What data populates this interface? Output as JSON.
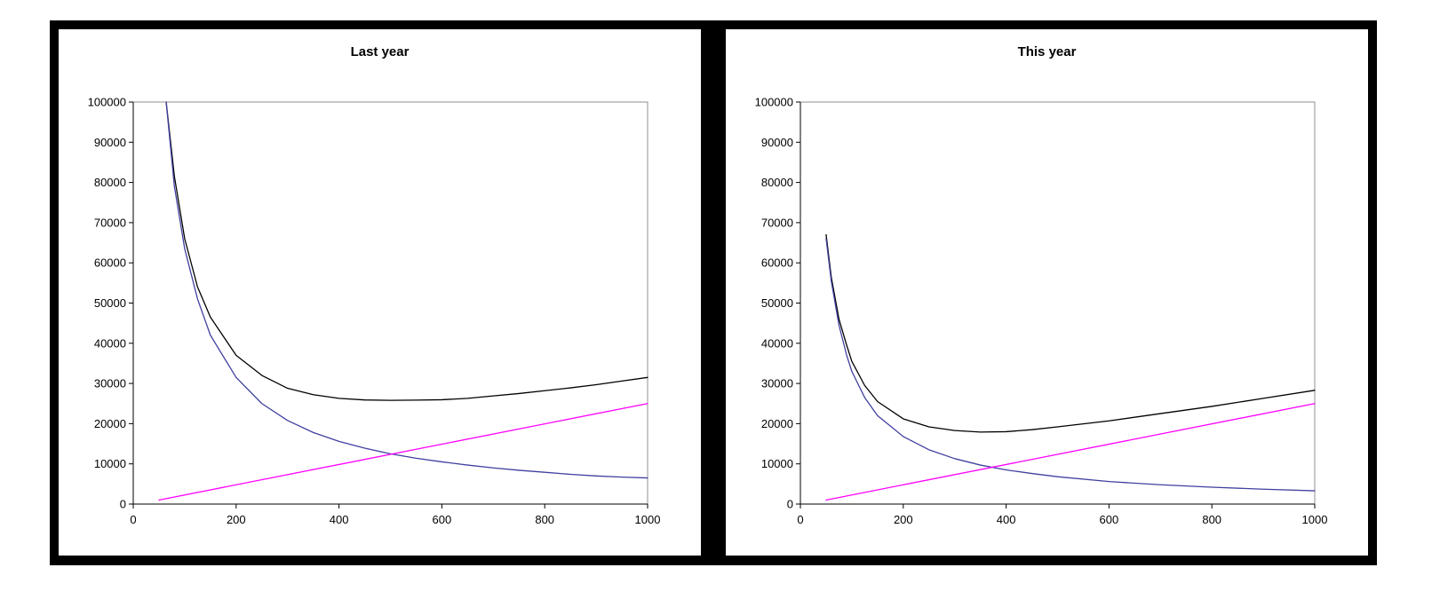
{
  "chart_data": [
    {
      "type": "line",
      "title": "Last year",
      "xlabel": "",
      "ylabel": "",
      "xlim": [
        0,
        1000
      ],
      "ylim": [
        0,
        100000
      ],
      "x_ticks": [
        0,
        200,
        400,
        600,
        800,
        1000
      ],
      "y_ticks": [
        0,
        10000,
        20000,
        30000,
        40000,
        50000,
        60000,
        70000,
        80000,
        90000,
        100000
      ],
      "grid": false,
      "legend": "none",
      "series": [
        {
          "color": "#000000",
          "x": [
            64,
            80,
            100,
            125,
            150,
            200,
            250,
            300,
            350,
            400,
            450,
            500,
            550,
            600,
            650,
            700,
            750,
            800,
            850,
            900,
            950,
            1000
          ],
          "values": [
            100000,
            81500,
            66000,
            54000,
            46500,
            37000,
            32000,
            28800,
            27200,
            26300,
            25900,
            25800,
            25850,
            25950,
            26300,
            26900,
            27500,
            28200,
            28900,
            29700,
            30600,
            31500
          ]
        },
        {
          "color": "#4040a0",
          "x": [
            64,
            80,
            100,
            125,
            150,
            200,
            250,
            300,
            350,
            400,
            450,
            500,
            550,
            600,
            650,
            700,
            750,
            800,
            850,
            900,
            950,
            1000
          ],
          "values": [
            100000,
            79000,
            63500,
            51000,
            42000,
            31500,
            25000,
            20800,
            17800,
            15600,
            13900,
            12500,
            11400,
            10500,
            9700,
            9000,
            8400,
            7900,
            7400,
            7000,
            6700,
            6500
          ]
        },
        {
          "color": "#ff00ff",
          "x": [
            50,
            1000
          ],
          "values": [
            1000,
            25000
          ]
        }
      ]
    },
    {
      "type": "line",
      "title": "This year",
      "xlabel": "",
      "ylabel": "",
      "xlim": [
        0,
        1000
      ],
      "ylim": [
        0,
        100000
      ],
      "x_ticks": [
        0,
        200,
        400,
        600,
        800,
        1000
      ],
      "y_ticks": [
        0,
        10000,
        20000,
        30000,
        40000,
        50000,
        60000,
        70000,
        80000,
        90000,
        100000
      ],
      "grid": false,
      "legend": "none",
      "series": [
        {
          "color": "#000000",
          "x": [
            50,
            60,
            75,
            90,
            100,
            125,
            150,
            200,
            250,
            300,
            350,
            400,
            450,
            500,
            600,
            700,
            800,
            900,
            1000
          ],
          "values": [
            67000,
            56500,
            46000,
            39500,
            35500,
            29500,
            25500,
            21200,
            19200,
            18300,
            17900,
            18000,
            18500,
            19200,
            20700,
            22500,
            24300,
            26300,
            28300
          ]
        },
        {
          "color": "#4040a0",
          "x": [
            50,
            60,
            75,
            90,
            100,
            125,
            150,
            200,
            250,
            300,
            350,
            400,
            450,
            500,
            600,
            700,
            800,
            900,
            1000
          ],
          "values": [
            66000,
            55500,
            44500,
            37000,
            33000,
            26500,
            22000,
            16800,
            13500,
            11300,
            9700,
            8500,
            7600,
            6800,
            5600,
            4800,
            4200,
            3700,
            3300
          ]
        },
        {
          "color": "#ff00ff",
          "x": [
            50,
            1000
          ],
          "values": [
            1000,
            25000
          ]
        }
      ]
    }
  ]
}
